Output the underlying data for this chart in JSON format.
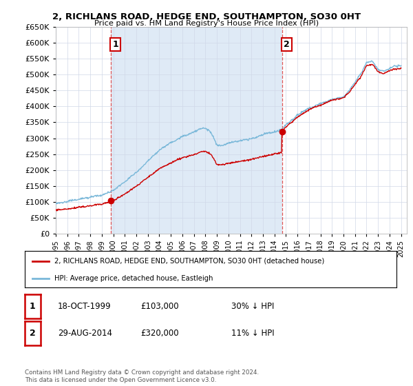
{
  "title": "2, RICHLANS ROAD, HEDGE END, SOUTHAMPTON, SO30 0HT",
  "subtitle": "Price paid vs. HM Land Registry's House Price Index (HPI)",
  "yticks": [
    0,
    50000,
    100000,
    150000,
    200000,
    250000,
    300000,
    350000,
    400000,
    450000,
    500000,
    550000,
    600000,
    650000
  ],
  "ytick_labels": [
    "£0",
    "£50K",
    "£100K",
    "£150K",
    "£200K",
    "£250K",
    "£300K",
    "£350K",
    "£400K",
    "£450K",
    "£500K",
    "£550K",
    "£600K",
    "£650K"
  ],
  "hpi_color": "#7ab8d9",
  "sale_color": "#cc0000",
  "vline_color": "#dd4444",
  "grid_color": "#d0d8e8",
  "bg_color": "#dce8f5",
  "outer_bg": "#ffffff",
  "legend_label_sale": "2, RICHLANS ROAD, HEDGE END, SOUTHAMPTON, SO30 0HT (detached house)",
  "legend_label_hpi": "HPI: Average price, detached house, Eastleigh",
  "sale1_year": 1999.8,
  "sale1_price": 103000,
  "sale2_year": 2014.65,
  "sale2_price": 320000,
  "copyright_text": "Contains HM Land Registry data © Crown copyright and database right 2024.\nThis data is licensed under the Open Government Licence v3.0.",
  "table_rows": [
    {
      "label": "1",
      "date": "18-OCT-1999",
      "price": "£103,000",
      "info": "30% ↓ HPI"
    },
    {
      "label": "2",
      "date": "29-AUG-2014",
      "price": "£320,000",
      "info": "11% ↓ HPI"
    }
  ],
  "xmin": 1995,
  "xmax": 2025.5,
  "ymin": 0,
  "ymax": 650000
}
